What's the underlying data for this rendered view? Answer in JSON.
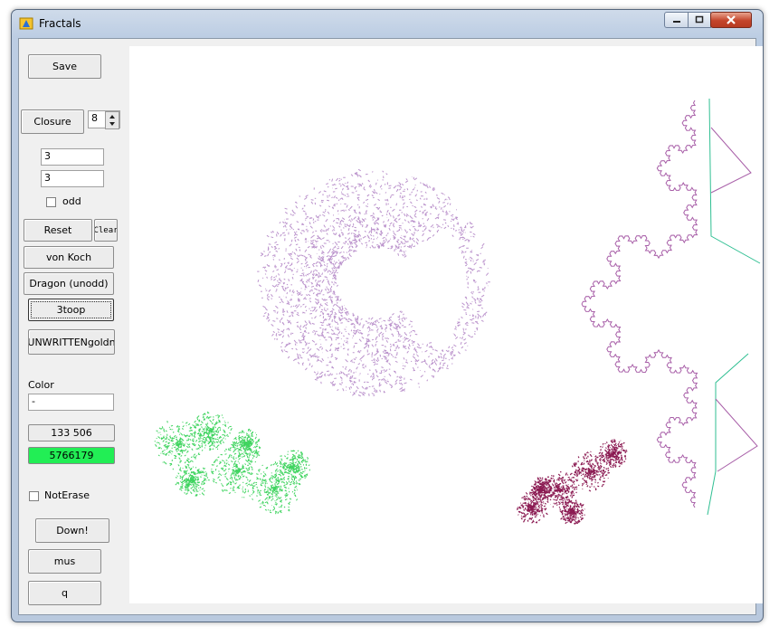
{
  "window": {
    "title": "Fractals"
  },
  "controls": {
    "save": "Save",
    "closure": "Closure",
    "closure_value": "8",
    "edit1": "3",
    "edit2": "3",
    "odd_label": "odd",
    "reset": "Reset",
    "clear": "Clear",
    "vonkoch": "von Koch",
    "dragon": "Dragon (unodd)",
    "threetoop": "3toop",
    "unwritten": "UNWRITTENgoldn",
    "color_label": "Color",
    "color_value": "-",
    "count1": "133 506",
    "count2": "5766179",
    "noterase_label": "NotErase",
    "down": "Down!",
    "mus": "mus",
    "q": "q"
  },
  "colors": {
    "purple_fractal": "#b487c6",
    "green_fractal": "#3fd45f",
    "maroon_fractal": "#8b1a52",
    "koch_curve": "#a85fa8",
    "teal_line": "#2fbf92",
    "count2_bg": "#22ee55"
  }
}
